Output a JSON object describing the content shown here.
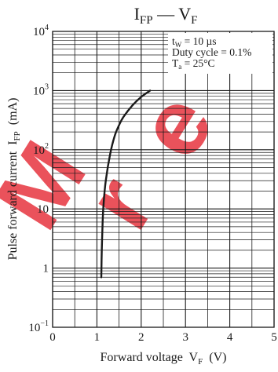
{
  "chart_data": {
    "type": "line",
    "title": {
      "main": "I",
      "main_sub": "FP",
      "dash": "—",
      "second": "V",
      "second_sub": "F"
    },
    "xlabel": {
      "text": "Forward voltage  V",
      "sub": "F",
      "unit": "  (V)"
    },
    "ylabel": {
      "text": "Pulse forward current  I",
      "sub": "FP",
      "unit": "  (mA)"
    },
    "x_scale": "linear",
    "y_scale": "log",
    "xlim": [
      0,
      5
    ],
    "ylim": [
      0.1,
      10000
    ],
    "x_ticks": [
      "0",
      "1",
      "2",
      "3",
      "4",
      "5"
    ],
    "y_ticks": [
      {
        "base": "10",
        "exp": "4"
      },
      {
        "base": "10",
        "exp": "3"
      },
      {
        "base": "10",
        "exp": "2"
      },
      {
        "base": "10",
        "exp": ""
      },
      {
        "base": "1",
        "exp": ""
      },
      {
        "base": "10",
        "exp": "−1"
      }
    ],
    "grid": true,
    "annotations": [
      {
        "text": "t",
        "sub": "W",
        "rest": " = 10 µs"
      },
      {
        "text": "Duty cycle = 0.1%",
        "sub": "",
        "rest": ""
      },
      {
        "text": "T",
        "sub": "a",
        "rest": " = 25°C"
      }
    ],
    "series": [
      {
        "x": [
          1.1,
          1.11,
          1.13,
          1.15,
          1.2,
          1.3,
          1.4,
          1.5,
          1.6,
          1.8,
          2.0,
          2.2
        ],
        "y": [
          0.7,
          2,
          6,
          12,
          30,
          85,
          170,
          260,
          360,
          560,
          780,
          1000
        ]
      }
    ],
    "colors": {
      "line": "#1a1a1a",
      "grid": "#1a1a1a",
      "watermark": "#e8404a"
    }
  }
}
